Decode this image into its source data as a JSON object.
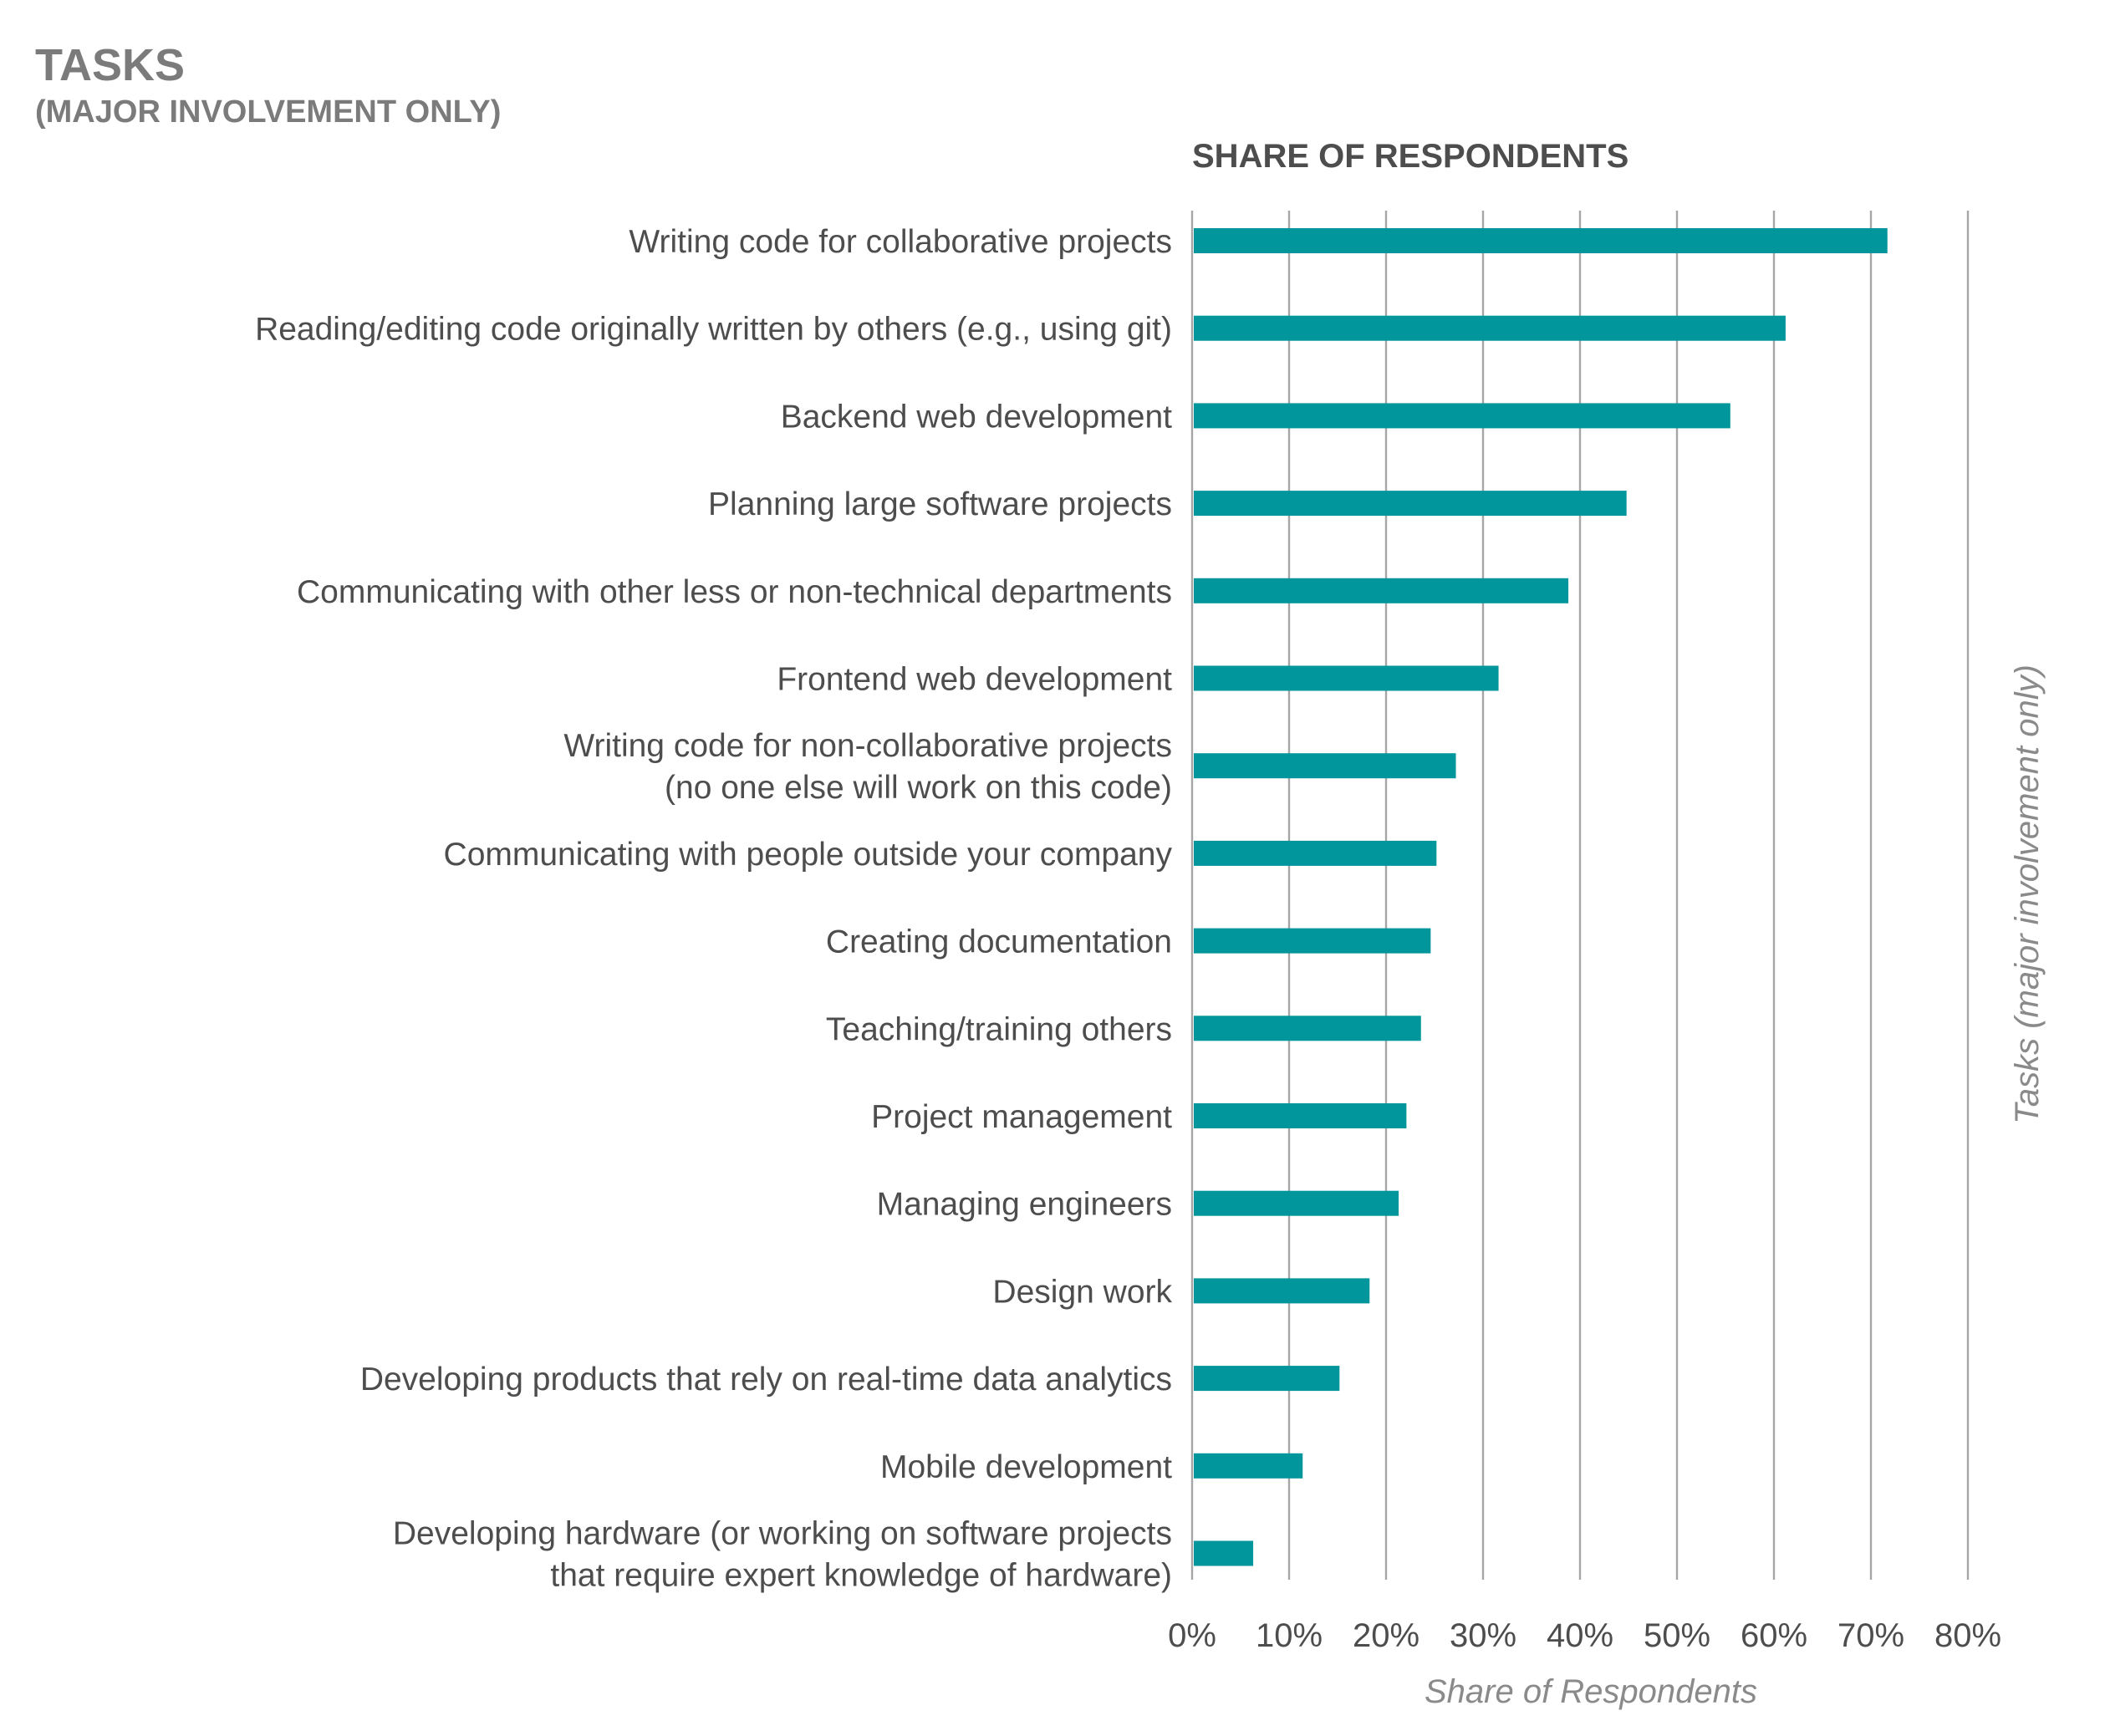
{
  "header": {
    "title": "TASKS",
    "subtitle": "(MAJOR INVOLVEMENT ONLY)",
    "column_heading": "SHARE OF RESPONDENTS"
  },
  "colors": {
    "bar": "#00969b",
    "grid": "#a6a6a6",
    "text": "#4d4d4d",
    "title": "#7b7b7b"
  },
  "chart_data": {
    "type": "bar",
    "orientation": "horizontal",
    "title": "TASKS",
    "subtitle": "(MAJOR INVOLVEMENT ONLY)",
    "xlabel": "Share of Respondents",
    "ylabel": "Tasks (major involvement only)",
    "xlim": [
      0,
      80
    ],
    "x_ticks": [
      "0%",
      "10%",
      "20%",
      "30%",
      "40%",
      "50%",
      "60%",
      "70%",
      "80%"
    ],
    "grid": "vertical",
    "legend": "none",
    "categories": [
      [
        "Writing code for collaborative projects"
      ],
      [
        "Reading/editing code originally written by others (e.g., using git)"
      ],
      [
        "Backend web development"
      ],
      [
        "Planning large software projects"
      ],
      [
        "Communicating with other less or non-technical departments"
      ],
      [
        "Frontend web development"
      ],
      [
        "Writing code for non-collaborative projects",
        "(no one else will work on this code)"
      ],
      [
        "Communicating with people outside your company"
      ],
      [
        "Creating documentation"
      ],
      [
        "Teaching/training others"
      ],
      [
        "Project management"
      ],
      [
        "Managing engineers"
      ],
      [
        "Design work"
      ],
      [
        "Developing products that rely on real-time data analytics"
      ],
      [
        "Mobile development"
      ],
      [
        "Developing hardware (or working on software projects",
        "that require expert knowledge of hardware)"
      ]
    ],
    "values": [
      71.7,
      61.2,
      55.5,
      44.8,
      38.8,
      31.6,
      27.2,
      25.2,
      24.6,
      23.6,
      22.1,
      21.3,
      18.3,
      15.2,
      11.4,
      6.3
    ]
  }
}
